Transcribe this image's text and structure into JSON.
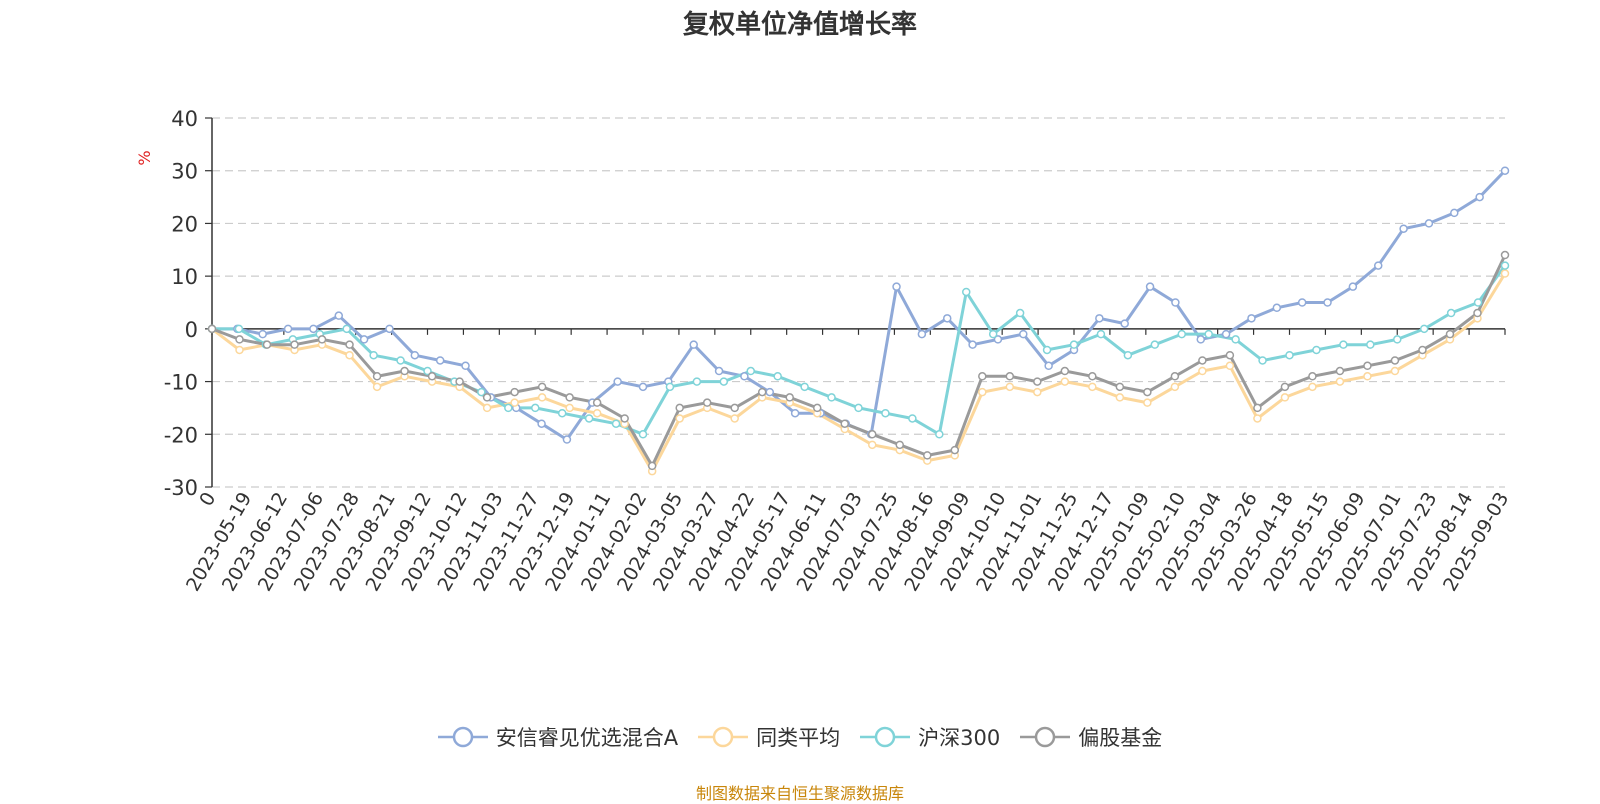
{
  "chart_data": {
    "type": "line",
    "title": "复权单位净值增长率",
    "ylabel": "%",
    "ylim": [
      -30,
      40
    ],
    "yticks": [
      40,
      30,
      20,
      10,
      0,
      -10,
      -20,
      -30
    ],
    "grid": true,
    "legend_position": "bottom",
    "x_tick_labels": [
      "0",
      "2023-05-19",
      "2023-06-12",
      "2023-07-06",
      "2023-07-28",
      "2023-08-21",
      "2023-09-12",
      "2023-10-12",
      "2023-11-03",
      "2023-11-27",
      "2023-12-19",
      "2024-01-11",
      "2024-02-02",
      "2024-03-05",
      "2024-03-27",
      "2024-04-22",
      "2024-05-17",
      "2024-06-11",
      "2024-07-03",
      "2024-07-25",
      "2024-08-16",
      "2024-09-09",
      "2024-10-10",
      "2024-11-01",
      "2024-11-25",
      "2024-12-17",
      "2025-01-09",
      "2025-02-10",
      "2025-03-04",
      "2025-03-26",
      "2025-04-18",
      "2025-05-15",
      "2025-06-09",
      "2025-07-01",
      "2025-07-23",
      "2025-08-14",
      "2025-09-03"
    ],
    "series": [
      {
        "name": "安信睿见优选混合A",
        "color": "#8fa9d8",
        "values": [
          0,
          0,
          -1,
          0,
          0,
          2.5,
          -2,
          0,
          -5,
          -6,
          -7,
          -13,
          -15,
          -18,
          -21,
          -14,
          -10,
          -11,
          -10,
          -3,
          -8,
          -9,
          -12,
          -16,
          -16,
          -18,
          -20,
          8,
          -1,
          2,
          -3,
          -2,
          -1,
          -7,
          -4,
          2,
          1,
          8,
          5,
          -2,
          -1,
          2,
          4,
          5,
          5,
          8,
          12,
          19,
          20,
          22,
          25,
          30
        ]
      },
      {
        "name": "同类平均",
        "color": "#fcd79b",
        "values": [
          0,
          -4,
          -3,
          -4,
          -3,
          -5,
          -11,
          -9,
          -10,
          -11,
          -15,
          -14,
          -13,
          -15,
          -16,
          -18,
          -27,
          -17,
          -15,
          -17,
          -13,
          -14,
          -16,
          -19,
          -22,
          -23,
          -25,
          -24,
          -12,
          -11,
          -12,
          -10,
          -11,
          -13,
          -14,
          -11,
          -8,
          -7,
          -17,
          -13,
          -11,
          -10,
          -9,
          -8,
          -5,
          -2,
          2,
          10.5
        ]
      },
      {
        "name": "沪深300",
        "color": "#7fd3d8",
        "values": [
          0,
          0,
          -3,
          -2,
          -1,
          0,
          -5,
          -6,
          -8,
          -10,
          -12,
          -15,
          -15,
          -16,
          -17,
          -18,
          -20,
          -11,
          -10,
          -10,
          -8,
          -9,
          -11,
          -13,
          -15,
          -16,
          -17,
          -20,
          7,
          -1,
          3,
          -4,
          -3,
          -1,
          -5,
          -3,
          -1,
          -1,
          -2,
          -6,
          -5,
          -4,
          -3,
          -3,
          -2,
          0,
          3,
          5,
          12
        ]
      },
      {
        "name": "偏股基金",
        "color": "#9a9a9a",
        "values": [
          0,
          -2,
          -3,
          -3,
          -2,
          -3,
          -9,
          -8,
          -9,
          -10,
          -13,
          -12,
          -11,
          -13,
          -14,
          -17,
          -26,
          -15,
          -14,
          -15,
          -12,
          -13,
          -15,
          -18,
          -20,
          -22,
          -24,
          -23,
          -9,
          -9,
          -10,
          -8,
          -9,
          -11,
          -12,
          -9,
          -6,
          -5,
          -15,
          -11,
          -9,
          -8,
          -7,
          -6,
          -4,
          -1,
          3,
          14
        ]
      }
    ]
  },
  "legend": {
    "items": [
      {
        "label": "安信睿见优选混合A",
        "color": "#8fa9d8"
      },
      {
        "label": "同类平均",
        "color": "#fcd79b"
      },
      {
        "label": "沪深300",
        "color": "#7fd3d8"
      },
      {
        "label": "偏股基金",
        "color": "#9a9a9a"
      }
    ]
  },
  "footer": {
    "source": "制图数据来自恒生聚源数据库"
  }
}
